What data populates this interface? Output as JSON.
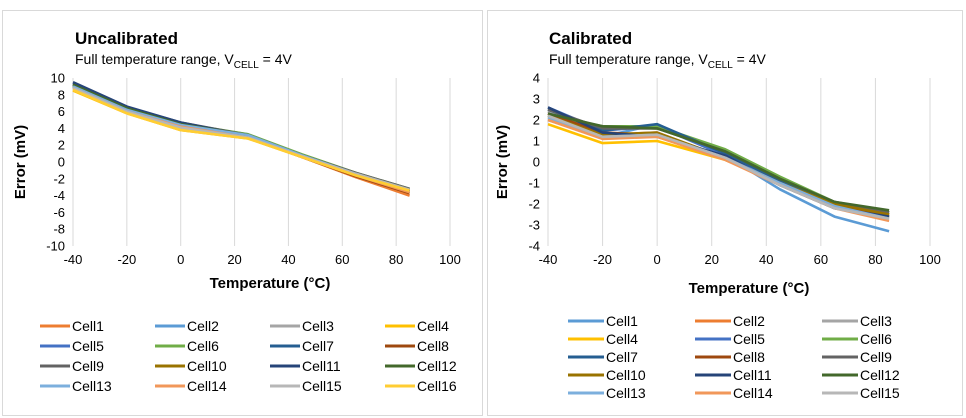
{
  "chart_data": [
    {
      "type": "line",
      "title": "Uncalibrated",
      "subtitle": {
        "prefix": "Full temperature range, V",
        "sub": "CELL",
        "suffix": " = 4V"
      },
      "xlabel": "Temperature (°C)",
      "ylabel": "Error (mV)",
      "xlim": [
        -40,
        100
      ],
      "ylim": [
        -10,
        10
      ],
      "xticks": [
        "-40",
        "-20",
        "0",
        "20",
        "40",
        "60",
        "80",
        "100"
      ],
      "yticks": [
        "10",
        "8",
        "6",
        "4",
        "2",
        "0",
        "-2",
        "-4",
        "-6",
        "-8",
        "-10"
      ],
      "grid": "vertical",
      "legend": "bottom",
      "x": [
        -40,
        -20,
        0,
        25,
        45,
        65,
        85
      ],
      "series": [
        {
          "name": "Cell1",
          "color": "#ED7D31",
          "values": [
            9.0,
            6.2,
            4.4,
            3.0,
            0.6,
            -1.8,
            -4.0
          ]
        },
        {
          "name": "Cell2",
          "color": "#5B9BD5",
          "values": [
            9.1,
            6.3,
            4.5,
            3.3,
            0.8,
            -1.4,
            -3.4
          ]
        },
        {
          "name": "Cell3",
          "color": "#A5A5A5",
          "values": [
            8.9,
            6.1,
            4.3,
            3.0,
            0.7,
            -1.5,
            -3.5
          ]
        },
        {
          "name": "Cell4",
          "color": "#FFC000",
          "values": [
            8.5,
            5.8,
            3.8,
            2.8,
            0.6,
            -1.5,
            -3.3
          ]
        },
        {
          "name": "Cell5",
          "color": "#4472C4",
          "values": [
            9.4,
            6.5,
            4.6,
            3.1,
            0.7,
            -1.5,
            -3.5
          ]
        },
        {
          "name": "Cell6",
          "color": "#70AD47",
          "values": [
            9.1,
            6.4,
            4.6,
            3.3,
            0.9,
            -1.3,
            -3.2
          ]
        },
        {
          "name": "Cell7",
          "color": "#255E91",
          "values": [
            9.2,
            6.4,
            4.5,
            3.1,
            0.8,
            -1.4,
            -3.3
          ]
        },
        {
          "name": "Cell8",
          "color": "#9E480E",
          "values": [
            9.0,
            6.3,
            4.4,
            3.0,
            0.6,
            -1.7,
            -3.7
          ]
        },
        {
          "name": "Cell9",
          "color": "#636363",
          "values": [
            9.3,
            6.5,
            4.7,
            3.2,
            0.8,
            -1.3,
            -3.2
          ]
        },
        {
          "name": "Cell10",
          "color": "#997300",
          "values": [
            9.0,
            6.2,
            4.3,
            3.0,
            0.7,
            -1.5,
            -3.4
          ]
        },
        {
          "name": "Cell11",
          "color": "#264478",
          "values": [
            9.5,
            6.6,
            4.7,
            3.1,
            0.7,
            -1.5,
            -3.5
          ]
        },
        {
          "name": "Cell12",
          "color": "#43682B",
          "values": [
            9.2,
            6.4,
            4.5,
            3.2,
            0.8,
            -1.4,
            -3.3
          ]
        },
        {
          "name": "Cell13",
          "color": "#7CAFDD",
          "values": [
            9.0,
            6.2,
            4.4,
            3.2,
            0.8,
            -1.4,
            -3.4
          ]
        },
        {
          "name": "Cell14",
          "color": "#F1975A",
          "values": [
            8.8,
            6.0,
            4.2,
            2.9,
            0.6,
            -1.6,
            -3.6
          ]
        },
        {
          "name": "Cell15",
          "color": "#B7B7B7",
          "values": [
            8.8,
            6.0,
            4.1,
            2.9,
            0.7,
            -1.4,
            -3.3
          ]
        },
        {
          "name": "Cell16",
          "color": "#FFCD33",
          "values": [
            8.6,
            5.8,
            3.8,
            2.8,
            0.6,
            -1.6,
            -3.4
          ]
        }
      ]
    },
    {
      "type": "line",
      "title": "Calibrated",
      "subtitle": {
        "prefix": "Full temperature range, V",
        "sub": "CELL",
        "suffix": " = 4V"
      },
      "xlabel": "Temperature (°C)",
      "ylabel": "Error (mV)",
      "xlim": [
        -40,
        100
      ],
      "ylim": [
        -4,
        4
      ],
      "xticks": [
        "-40",
        "-20",
        "0",
        "20",
        "40",
        "60",
        "80",
        "100"
      ],
      "yticks": [
        "4",
        "3",
        "2",
        "1",
        "0",
        "-1",
        "-2",
        "-3",
        "-4"
      ],
      "grid": "vertical",
      "legend": "bottom",
      "x": [
        -40,
        -20,
        0,
        25,
        45,
        65,
        85
      ],
      "series": [
        {
          "name": "Cell1",
          "color": "#5B9BD5",
          "values": [
            2.0,
            1.2,
            1.8,
            0.3,
            -1.3,
            -2.6,
            -3.3
          ]
        },
        {
          "name": "Cell2",
          "color": "#ED7D31",
          "values": [
            2.3,
            1.3,
            1.4,
            0.1,
            -1.0,
            -2.1,
            -2.6
          ]
        },
        {
          "name": "Cell3",
          "color": "#A5A5A5",
          "values": [
            2.4,
            1.2,
            1.2,
            0.2,
            -1.0,
            -2.2,
            -2.6
          ]
        },
        {
          "name": "Cell4",
          "color": "#FFC000",
          "values": [
            1.8,
            0.9,
            1.0,
            0.1,
            -1.0,
            -2.0,
            -2.5
          ]
        },
        {
          "name": "Cell5",
          "color": "#4472C4",
          "values": [
            2.6,
            1.5,
            1.7,
            0.3,
            -1.1,
            -2.2,
            -2.6
          ]
        },
        {
          "name": "Cell6",
          "color": "#70AD47",
          "values": [
            2.2,
            1.7,
            1.7,
            0.6,
            -0.7,
            -1.9,
            -2.4
          ]
        },
        {
          "name": "Cell7",
          "color": "#255E91",
          "values": [
            2.5,
            1.5,
            1.8,
            0.4,
            -0.9,
            -2.0,
            -2.4
          ]
        },
        {
          "name": "Cell8",
          "color": "#9E480E",
          "values": [
            2.3,
            1.4,
            1.3,
            0.2,
            -1.0,
            -2.1,
            -2.5
          ]
        },
        {
          "name": "Cell9",
          "color": "#636363",
          "values": [
            2.5,
            1.6,
            1.6,
            0.5,
            -0.8,
            -1.9,
            -2.4
          ]
        },
        {
          "name": "Cell10",
          "color": "#997300",
          "values": [
            2.2,
            1.3,
            1.4,
            0.2,
            -1.0,
            -2.0,
            -2.5
          ]
        },
        {
          "name": "Cell11",
          "color": "#264478",
          "values": [
            2.6,
            1.4,
            1.2,
            0.3,
            -1.1,
            -2.2,
            -2.6
          ]
        },
        {
          "name": "Cell12",
          "color": "#43682B",
          "values": [
            2.3,
            1.7,
            1.6,
            0.5,
            -0.8,
            -1.9,
            -2.3
          ]
        },
        {
          "name": "Cell13",
          "color": "#7CAFDD",
          "values": [
            2.1,
            1.2,
            1.3,
            0.2,
            -1.0,
            -2.1,
            -2.7
          ]
        },
        {
          "name": "Cell14",
          "color": "#F1975A",
          "values": [
            2.0,
            1.1,
            1.2,
            0.1,
            -1.1,
            -2.2,
            -2.8
          ]
        },
        {
          "name": "Cell15",
          "color": "#B7B7B7",
          "values": [
            2.2,
            1.2,
            1.3,
            0.2,
            -1.1,
            -2.2,
            -2.7
          ]
        }
      ]
    }
  ]
}
